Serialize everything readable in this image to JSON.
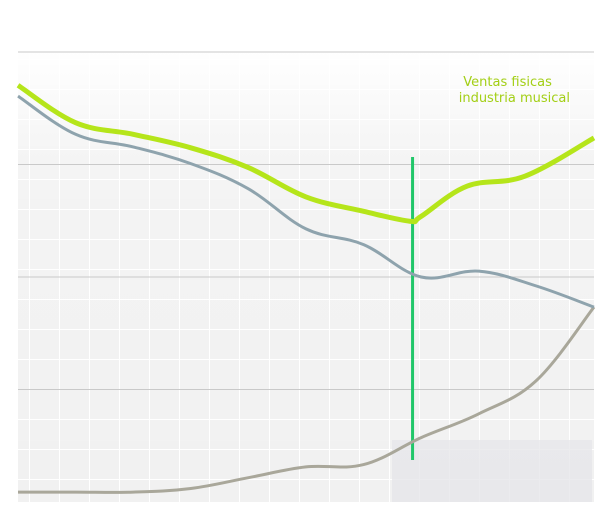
{
  "chart_data": {
    "type": "line",
    "title": "",
    "xlabel": "",
    "ylabel": "",
    "grid": true,
    "gridlines_y": [
      25,
      50,
      75
    ],
    "xlim": [
      0,
      100
    ],
    "ylim": [
      0,
      100
    ],
    "marker_x": 68.5,
    "annotation": {
      "lines": [
        "Ventas fisicas",
        "industria musical"
      ],
      "color": "#a3cf16"
    },
    "series": [
      {
        "name": "Ventas fisicas industria musical",
        "color": "#b5e51a",
        "x": [
          0,
          10,
          20,
          30,
          40,
          50,
          60,
          68,
          70,
          78,
          88,
          100
        ],
        "y": [
          92.6,
          84.3,
          81.7,
          78.7,
          74.3,
          67.8,
          64.6,
          62.4,
          63.5,
          70.2,
          72.4,
          80.9
        ]
      },
      {
        "name": "",
        "color": "#8ea3ad",
        "x": [
          0,
          10,
          20,
          30,
          40,
          50,
          60,
          70,
          80,
          90,
          100
        ],
        "y": [
          90.2,
          81.7,
          78.9,
          75.2,
          69.6,
          60.7,
          57.2,
          50.0,
          51.3,
          48.0,
          43.3
        ]
      },
      {
        "name": "",
        "color": "#a9a79a",
        "x": [
          0,
          10,
          20,
          30,
          40,
          50,
          60,
          70,
          80,
          90,
          100
        ],
        "y": [
          2.2,
          2.2,
          2.2,
          3.0,
          5.4,
          7.8,
          8.3,
          14.3,
          19.6,
          27.0,
          43.3
        ]
      }
    ]
  }
}
